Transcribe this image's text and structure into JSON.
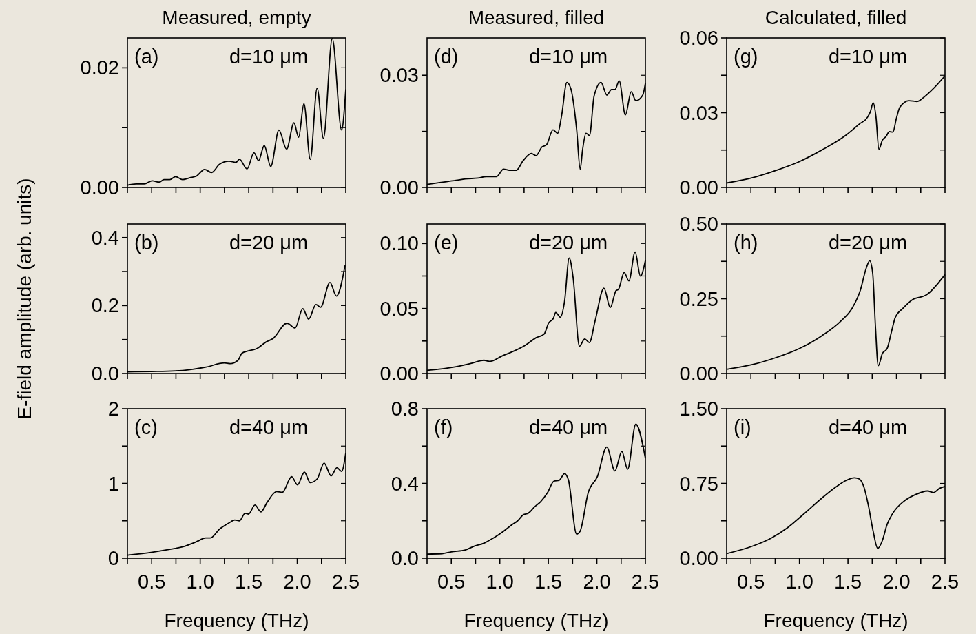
{
  "chart_data": [
    {
      "type": "line",
      "title": "Measured, empty",
      "annotations": [
        "(a)",
        "d=10 μm"
      ],
      "color": "#000000",
      "tick_labels": "y",
      "xlim": [
        0.25,
        2.5
      ],
      "xticks": [
        {
          "value": 0.25,
          "label": null
        },
        {
          "value": 0.5,
          "label": null
        },
        {
          "value": 0.75,
          "label": null
        },
        {
          "value": 1,
          "label": null
        },
        {
          "value": 1.25,
          "label": null
        },
        {
          "value": 1.5,
          "label": null
        },
        {
          "value": 1.75,
          "label": null
        },
        {
          "value": 2,
          "label": null
        },
        {
          "value": 2.25,
          "label": null
        },
        {
          "value": 2.5,
          "label": null
        }
      ],
      "ylim": [
        0,
        0.025
      ],
      "yticks": [
        {
          "value": 0,
          "label": "0.00"
        },
        {
          "value": 0.01,
          "label": null
        },
        {
          "value": 0.02,
          "label": "0.02"
        }
      ],
      "x": [
        0.25,
        0.339,
        0.423,
        0.506,
        0.578,
        0.626,
        0.686,
        0.746,
        0.818,
        0.89,
        0.962,
        1.045,
        1.117,
        1.2,
        1.296,
        1.368,
        1.404,
        1.483,
        1.554,
        1.602,
        1.66,
        1.727,
        1.811,
        1.89,
        1.966,
        2.014,
        2.069,
        2.134,
        2.205,
        2.27,
        2.361,
        2.457,
        2.5
      ],
      "values": [
        0.0004,
        0.0006,
        0.0006,
        0.0011,
        0.0009,
        0.0013,
        0.0013,
        0.0018,
        0.0013,
        0.0016,
        0.0019,
        0.003,
        0.0025,
        0.0039,
        0.0044,
        0.0042,
        0.0047,
        0.0031,
        0.0058,
        0.0045,
        0.007,
        0.0035,
        0.0096,
        0.0064,
        0.0108,
        0.0084,
        0.014,
        0.0047,
        0.0166,
        0.0082,
        0.0249,
        0.0096,
        0.0164
      ]
    },
    {
      "type": "line",
      "title": "Measured, filled",
      "annotations": [
        "(d)",
        "d=10 μm"
      ],
      "color": "#000000",
      "tick_labels": "y",
      "xlim": [
        0.25,
        2.5
      ],
      "xticks": [
        {
          "value": 0.25,
          "label": null
        },
        {
          "value": 0.5,
          "label": null
        },
        {
          "value": 0.75,
          "label": null
        },
        {
          "value": 1,
          "label": null
        },
        {
          "value": 1.25,
          "label": null
        },
        {
          "value": 1.5,
          "label": null
        },
        {
          "value": 1.75,
          "label": null
        },
        {
          "value": 2,
          "label": null
        },
        {
          "value": 2.25,
          "label": null
        },
        {
          "value": 2.5,
          "label": null
        }
      ],
      "ylim": [
        0,
        0.04
      ],
      "yticks": [
        {
          "value": 0,
          "label": "0.00"
        },
        {
          "value": 0.015,
          "label": null
        },
        {
          "value": 0.03,
          "label": "0.03"
        }
      ],
      "x": [
        0.25,
        0.381,
        0.549,
        0.644,
        0.775,
        0.859,
        0.967,
        1.038,
        1.098,
        1.17,
        1.241,
        1.325,
        1.373,
        1.433,
        1.481,
        1.548,
        1.596,
        1.636,
        1.691,
        1.732,
        1.792,
        1.828,
        1.852,
        1.888,
        1.924,
        1.972,
        2.043,
        2.103,
        2.151,
        2.187,
        2.23,
        2.294,
        2.354,
        2.402,
        2.473,
        2.5
      ],
      "values": [
        0.0008,
        0.0013,
        0.0019,
        0.0023,
        0.0025,
        0.0029,
        0.0029,
        0.0049,
        0.0046,
        0.0046,
        0.0072,
        0.0091,
        0.0085,
        0.0108,
        0.0114,
        0.0154,
        0.0145,
        0.0191,
        0.0281,
        0.0264,
        0.0154,
        0.0049,
        0.0099,
        0.0145,
        0.0139,
        0.0245,
        0.0281,
        0.0247,
        0.0262,
        0.0262,
        0.0285,
        0.0194,
        0.0256,
        0.0232,
        0.0247,
        0.0279
      ]
    },
    {
      "type": "line",
      "title": "Calculated, filled",
      "annotations": [
        "(g)",
        "d=10 μm"
      ],
      "color": "#000000",
      "tick_labels": "y",
      "xlim": [
        0.25,
        2.5
      ],
      "xticks": [
        {
          "value": 0.25,
          "label": null
        },
        {
          "value": 0.5,
          "label": null
        },
        {
          "value": 0.75,
          "label": null
        },
        {
          "value": 1,
          "label": null
        },
        {
          "value": 1.25,
          "label": null
        },
        {
          "value": 1.5,
          "label": null
        },
        {
          "value": 1.75,
          "label": null
        },
        {
          "value": 2,
          "label": null
        },
        {
          "value": 2.25,
          "label": null
        },
        {
          "value": 2.5,
          "label": null
        }
      ],
      "ylim": [
        0,
        0.06
      ],
      "yticks": [
        {
          "value": 0,
          "label": "0.00"
        },
        {
          "value": 0.015,
          "label": null
        },
        {
          "value": 0.03,
          "label": "0.03"
        },
        {
          "value": 0.045,
          "label": null
        },
        {
          "value": 0.06,
          "label": "0.06"
        }
      ],
      "x": [
        0.25,
        0.517,
        0.756,
        0.995,
        1.234,
        1.473,
        1.616,
        1.7,
        1.731,
        1.76,
        1.788,
        1.819,
        1.855,
        1.891,
        1.927,
        1.963,
        1.999,
        2.035,
        2.13,
        2.214,
        2.285,
        2.381,
        2.5
      ],
      "values": [
        0.0018,
        0.0039,
        0.0068,
        0.0103,
        0.0151,
        0.0208,
        0.0254,
        0.0281,
        0.0304,
        0.034,
        0.0286,
        0.0153,
        0.019,
        0.0204,
        0.0224,
        0.0222,
        0.0277,
        0.0322,
        0.0348,
        0.0345,
        0.0363,
        0.0397,
        0.0448
      ]
    },
    {
      "type": "line",
      "ylabel": "E-field amplitude (arb. units)",
      "annotations": [
        "(b)",
        "d=20 μm"
      ],
      "color": "#000000",
      "tick_labels": "y",
      "xlim": [
        0.25,
        2.5
      ],
      "xticks": [
        {
          "value": 0.25,
          "label": null
        },
        {
          "value": 0.5,
          "label": null
        },
        {
          "value": 0.75,
          "label": null
        },
        {
          "value": 1,
          "label": null
        },
        {
          "value": 1.25,
          "label": null
        },
        {
          "value": 1.5,
          "label": null
        },
        {
          "value": 1.75,
          "label": null
        },
        {
          "value": 2,
          "label": null
        },
        {
          "value": 2.25,
          "label": null
        },
        {
          "value": 2.5,
          "label": null
        }
      ],
      "ylim": [
        0,
        0.44
      ],
      "yticks": [
        {
          "value": 0,
          "label": "0.0"
        },
        {
          "value": 0.1,
          "label": null
        },
        0.2,
        {
          "value": 0.3,
          "label": null
        },
        0.4
      ],
      "x": [
        0.25,
        0.5,
        0.82,
        1.06,
        1.25,
        1.31,
        1.39,
        1.43,
        1.49,
        1.58,
        1.68,
        1.75,
        1.894,
        1.978,
        2.057,
        2.117,
        2.193,
        2.241,
        2.337,
        2.404,
        2.493
      ],
      "values": [
        0.005,
        0.006,
        0.009,
        0.019,
        0.031,
        0.029,
        0.039,
        0.06,
        0.066,
        0.073,
        0.093,
        0.103,
        0.148,
        0.134,
        0.191,
        0.16,
        0.203,
        0.195,
        0.268,
        0.228,
        0.318
      ]
    },
    {
      "type": "line",
      "annotations": [
        "(e)",
        "d=20 μm"
      ],
      "color": "#000000",
      "tick_labels": "y",
      "xlim": [
        0.25,
        2.5
      ],
      "xticks": [
        {
          "value": 0.25,
          "label": null
        },
        {
          "value": 0.5,
          "label": null
        },
        {
          "value": 0.75,
          "label": null
        },
        {
          "value": 1,
          "label": null
        },
        {
          "value": 1.25,
          "label": null
        },
        {
          "value": 1.5,
          "label": null
        },
        {
          "value": 1.75,
          "label": null
        },
        {
          "value": 2,
          "label": null
        },
        {
          "value": 2.25,
          "label": null
        },
        {
          "value": 2.5,
          "label": null
        }
      ],
      "ylim": [
        0,
        0.115
      ],
      "yticks": [
        {
          "value": 0,
          "label": "0.00"
        },
        {
          "value": 0.025,
          "label": null
        },
        {
          "value": 0.05,
          "label": "0.05"
        },
        {
          "value": 0.075,
          "label": null
        },
        {
          "value": 0.1,
          "label": "0.10"
        }
      ],
      "x": [
        0.25,
        0.549,
        0.716,
        0.835,
        0.895,
        1.026,
        1.146,
        1.265,
        1.373,
        1.456,
        1.504,
        1.552,
        1.576,
        1.624,
        1.667,
        1.715,
        1.755,
        1.82,
        1.875,
        1.923,
        1.982,
        2.073,
        2.138,
        2.198,
        2.222,
        2.282,
        2.33,
        2.394,
        2.449,
        2.5
      ],
      "values": [
        0.0024,
        0.0052,
        0.008,
        0.0102,
        0.0093,
        0.0136,
        0.0173,
        0.0219,
        0.0275,
        0.0303,
        0.039,
        0.0424,
        0.047,
        0.0433,
        0.0554,
        0.0888,
        0.074,
        0.021,
        0.0266,
        0.0238,
        0.0405,
        0.0656,
        0.0507,
        0.0638,
        0.0647,
        0.0777,
        0.0712,
        0.0935,
        0.0749,
        0.087
      ]
    },
    {
      "type": "line",
      "annotations": [
        "(h)",
        "d=20 μm"
      ],
      "color": "#000000",
      "tick_labels": "y",
      "xlim": [
        0.25,
        2.5
      ],
      "xticks": [
        {
          "value": 0.25,
          "label": null
        },
        {
          "value": 0.5,
          "label": null
        },
        {
          "value": 0.75,
          "label": null
        },
        {
          "value": 1,
          "label": null
        },
        {
          "value": 1.25,
          "label": null
        },
        {
          "value": 1.5,
          "label": null
        },
        {
          "value": 1.75,
          "label": null
        },
        {
          "value": 2,
          "label": null
        },
        {
          "value": 2.25,
          "label": null
        },
        {
          "value": 2.5,
          "label": null
        }
      ],
      "ylim": [
        0,
        0.5
      ],
      "yticks": [
        {
          "value": 0,
          "label": "0.00"
        },
        {
          "value": 0.125,
          "label": null
        },
        {
          "value": 0.25,
          "label": "0.25"
        },
        {
          "value": 0.375,
          "label": null
        },
        {
          "value": 0.5,
          "label": "0.50"
        }
      ],
      "x": [
        0.25,
        0.517,
        0.756,
        0.995,
        1.234,
        1.425,
        1.544,
        1.628,
        1.688,
        1.724,
        1.755,
        1.783,
        1.812,
        1.855,
        1.903,
        1.951,
        1.987,
        2.07,
        2.166,
        2.309,
        2.5
      ],
      "values": [
        0.014,
        0.03,
        0.053,
        0.083,
        0.127,
        0.175,
        0.219,
        0.279,
        0.352,
        0.377,
        0.335,
        0.159,
        0.026,
        0.067,
        0.083,
        0.143,
        0.187,
        0.219,
        0.247,
        0.263,
        0.331
      ]
    },
    {
      "type": "line",
      "xlabel": "Frequency (THz)",
      "annotations": [
        "(c)",
        "d=40 μm"
      ],
      "color": "#000000",
      "xlim": [
        0.25,
        2.5
      ],
      "xticks": [
        {
          "value": 0.25,
          "label": null
        },
        0.5,
        {
          "value": 0.75,
          "label": null
        },
        {
          "value": 1,
          "label": "1.0"
        },
        {
          "value": 1.25,
          "label": null
        },
        1.5,
        {
          "value": 1.75,
          "label": null
        },
        {
          "value": 2,
          "label": "2.0"
        },
        {
          "value": 2.25,
          "label": null
        },
        2.5
      ],
      "ylim": [
        0,
        2
      ],
      "yticks": [
        0,
        {
          "value": 0.5,
          "label": null
        },
        1,
        {
          "value": 1.5,
          "label": null
        },
        2
      ],
      "x": [
        0.25,
        0.506,
        0.698,
        0.817,
        0.961,
        1.057,
        1.104,
        1.2,
        1.296,
        1.356,
        1.404,
        1.463,
        1.499,
        1.564,
        1.626,
        1.691,
        1.787,
        1.846,
        1.942,
        2.002,
        2.074,
        2.134,
        2.205,
        2.277,
        2.349,
        2.409,
        2.457,
        2.5
      ],
      "values": [
        0.04,
        0.08,
        0.12,
        0.15,
        0.22,
        0.27,
        0.27,
        0.39,
        0.47,
        0.51,
        0.5,
        0.6,
        0.59,
        0.71,
        0.62,
        0.75,
        0.89,
        0.88,
        1.09,
        0.98,
        1.15,
        1.01,
        1.06,
        1.27,
        1.1,
        1.21,
        1.16,
        1.41
      ]
    },
    {
      "type": "line",
      "xlabel": "Frequency (THz)",
      "annotations": [
        "(f)",
        "d=40 μm"
      ],
      "color": "#000000",
      "xlim": [
        0.25,
        2.5
      ],
      "xticks": [
        {
          "value": 0.25,
          "label": null
        },
        0.5,
        {
          "value": 0.75,
          "label": null
        },
        {
          "value": 1,
          "label": "1.0"
        },
        {
          "value": 1.25,
          "label": null
        },
        1.5,
        {
          "value": 1.75,
          "label": null
        },
        {
          "value": 2,
          "label": "2.0"
        },
        {
          "value": 2.25,
          "label": null
        },
        2.5
      ],
      "ylim": [
        0,
        0.8
      ],
      "yticks": [
        {
          "value": 0,
          "label": "0.0"
        },
        {
          "value": 0.2,
          "label": null
        },
        0.4,
        {
          "value": 0.6,
          "label": null
        },
        0.8
      ],
      "x": [
        0.25,
        0.405,
        0.5,
        0.644,
        0.74,
        0.835,
        0.931,
        1.038,
        1.122,
        1.182,
        1.241,
        1.294,
        1.361,
        1.42,
        1.492,
        1.557,
        1.612,
        1.667,
        1.707,
        1.791,
        1.827,
        1.911,
        2.006,
        2.102,
        2.186,
        2.257,
        2.317,
        2.401,
        2.5
      ],
      "values": [
        0.022,
        0.024,
        0.034,
        0.044,
        0.065,
        0.08,
        0.107,
        0.144,
        0.178,
        0.199,
        0.232,
        0.241,
        0.276,
        0.302,
        0.351,
        0.412,
        0.417,
        0.452,
        0.418,
        0.129,
        0.144,
        0.351,
        0.437,
        0.595,
        0.467,
        0.571,
        0.476,
        0.717,
        0.534
      ]
    },
    {
      "type": "line",
      "xlabel": "Frequency (THz)",
      "annotations": [
        "(i)",
        "d=40 μm"
      ],
      "color": "#000000",
      "xlim": [
        0.25,
        2.5
      ],
      "xticks": [
        {
          "value": 0.25,
          "label": null
        },
        0.5,
        {
          "value": 0.75,
          "label": null
        },
        {
          "value": 1,
          "label": "1.0"
        },
        {
          "value": 1.25,
          "label": null
        },
        1.5,
        {
          "value": 1.75,
          "label": null
        },
        {
          "value": 2,
          "label": "2.0"
        },
        {
          "value": 2.25,
          "label": null
        },
        2.5
      ],
      "ylim": [
        0,
        1.5
      ],
      "yticks": [
        {
          "value": 0,
          "label": "0.00"
        },
        {
          "value": 0.375,
          "label": null
        },
        {
          "value": 0.75,
          "label": "0.75"
        },
        {
          "value": 1.125,
          "label": null
        },
        {
          "value": 1.5,
          "label": "1.50"
        }
      ],
      "x": [
        0.25,
        0.517,
        0.708,
        0.875,
        1.042,
        1.234,
        1.377,
        1.473,
        1.568,
        1.616,
        1.664,
        1.712,
        1.76,
        1.807,
        1.855,
        1.903,
        1.963,
        2.07,
        2.189,
        2.321,
        2.381,
        2.441,
        2.5
      ],
      "values": [
        0.046,
        0.121,
        0.201,
        0.304,
        0.441,
        0.605,
        0.715,
        0.776,
        0.806,
        0.795,
        0.715,
        0.521,
        0.269,
        0.098,
        0.178,
        0.338,
        0.452,
        0.566,
        0.635,
        0.674,
        0.658,
        0.699,
        0.719
      ]
    }
  ]
}
